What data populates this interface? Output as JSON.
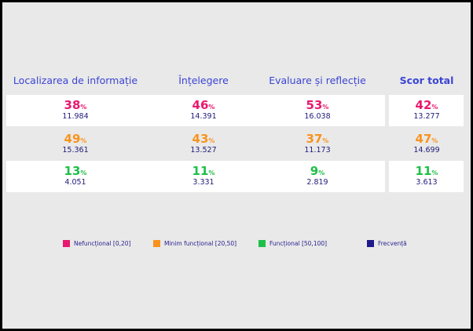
{
  "table": {
    "headers": [
      "Localizarea de informație",
      "Înțelegere",
      "Evaluare și reflecție",
      "Scor total"
    ],
    "rows": [
      {
        "color": "#e8186f",
        "cells": [
          {
            "percent": "38",
            "unit": "%",
            "count": "11.984"
          },
          {
            "percent": "46",
            "unit": "%",
            "count": "14.391"
          },
          {
            "percent": "53",
            "unit": "%",
            "count": "16.038"
          },
          {
            "percent": "42",
            "unit": "%",
            "count": "13.277"
          }
        ]
      },
      {
        "color": "#f7931e",
        "cells": [
          {
            "percent": "49",
            "unit": "%",
            "count": "15.361"
          },
          {
            "percent": "43",
            "unit": "%",
            "count": "13.527"
          },
          {
            "percent": "37",
            "unit": "%",
            "count": "11.173"
          },
          {
            "percent": "47",
            "unit": "%",
            "count": "14.699"
          }
        ]
      },
      {
        "color": "#1dbf48",
        "cells": [
          {
            "percent": "13",
            "unit": "%",
            "count": "4.051"
          },
          {
            "percent": "11",
            "unit": "%",
            "count": "3.331"
          },
          {
            "percent": "9",
            "unit": "%",
            "count": "2.819"
          },
          {
            "percent": "11",
            "unit": "%",
            "count": "3.613"
          }
        ]
      }
    ]
  },
  "legend": [
    {
      "label": "Nefuncțional [0,20]",
      "color": "#e8186f"
    },
    {
      "label": "Minim funcțional [20,50]",
      "color": "#f7931e"
    },
    {
      "label": "Funcțional [50,100]",
      "color": "#1dbf48"
    },
    {
      "label": "Frecvență",
      "color": "#1f1a8c"
    }
  ]
}
